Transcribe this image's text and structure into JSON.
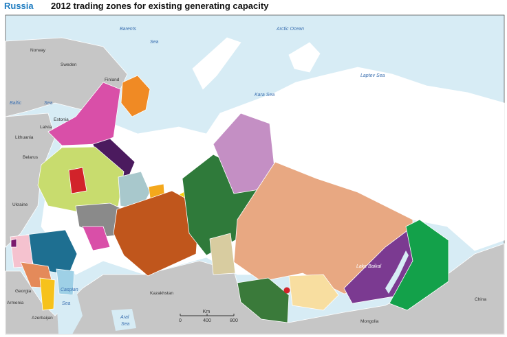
{
  "header": {
    "region": "Russia",
    "title": "2012 trading zones for existing generating capacity"
  },
  "labels": {
    "seas": [
      "Barents",
      "Sea",
      "Arctic Ocean",
      "Laptev Sea",
      "Kara Sea",
      "Baltic",
      "Sea",
      "Caspian",
      "Sea",
      "Aral",
      "Sea",
      "Lake Baikal"
    ],
    "countries": [
      "Norway",
      "Sweden",
      "Finland",
      "Estonia",
      "Latvia",
      "Lithuania",
      "Belarus",
      "Ukraine",
      "Georgia",
      "Armenia",
      "Azerbaijan",
      "Kazakhstan",
      "China",
      "Mongolia"
    ]
  },
  "scale": {
    "unit": "Km",
    "ticks": [
      0,
      400,
      800
    ]
  }
}
